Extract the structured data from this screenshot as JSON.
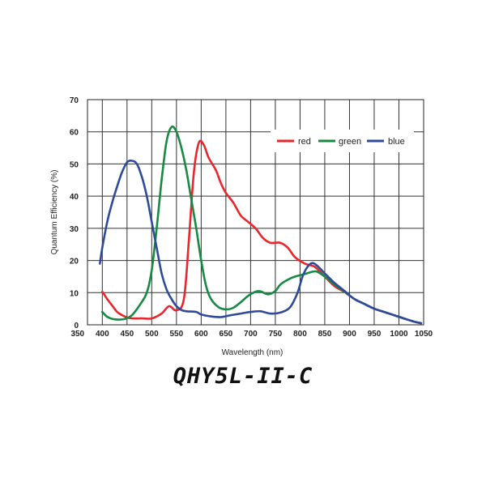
{
  "caption": "QHY5L-II-C",
  "chart_data": {
    "type": "line",
    "title": "",
    "xlabel": "Wavelength (nm)",
    "ylabel": "Quantum Efficiency (%)",
    "xlim": [
      350,
      1050
    ],
    "ylim": [
      0,
      70
    ],
    "x_ticks": [
      350,
      400,
      450,
      500,
      550,
      600,
      650,
      700,
      750,
      800,
      850,
      900,
      950,
      1000,
      1050
    ],
    "y_ticks": [
      0,
      10,
      20,
      30,
      40,
      50,
      60,
      70
    ],
    "grid": true,
    "legend_position": "top-right",
    "series": [
      {
        "name": "red",
        "color": "#e8262c",
        "points": [
          [
            400,
            10.3
          ],
          [
            410,
            8
          ],
          [
            420,
            6
          ],
          [
            430,
            4
          ],
          [
            440,
            3
          ],
          [
            450,
            2.3
          ],
          [
            460,
            2
          ],
          [
            480,
            2
          ],
          [
            500,
            2
          ],
          [
            520,
            3.5
          ],
          [
            535,
            5.8
          ],
          [
            550,
            4.5
          ],
          [
            565,
            8
          ],
          [
            575,
            26
          ],
          [
            585,
            47
          ],
          [
            595,
            56.5
          ],
          [
            605,
            56
          ],
          [
            615,
            52
          ],
          [
            630,
            48
          ],
          [
            640,
            44
          ],
          [
            650,
            41
          ],
          [
            665,
            38
          ],
          [
            680,
            34
          ],
          [
            695,
            32
          ],
          [
            710,
            30
          ],
          [
            725,
            27
          ],
          [
            740,
            25.5
          ],
          [
            760,
            25.5
          ],
          [
            775,
            24
          ],
          [
            790,
            21
          ],
          [
            810,
            19
          ],
          [
            830,
            18
          ],
          [
            850,
            15
          ],
          [
            870,
            12
          ],
          [
            890,
            10.2
          ],
          [
            910,
            8
          ],
          [
            930,
            6.5
          ],
          [
            950,
            5
          ],
          [
            970,
            4
          ],
          [
            990,
            3
          ],
          [
            1010,
            2
          ],
          [
            1030,
            1
          ],
          [
            1045,
            0.5
          ]
        ]
      },
      {
        "name": "green",
        "color": "#168a42",
        "points": [
          [
            400,
            4
          ],
          [
            410,
            2.5
          ],
          [
            425,
            1.7
          ],
          [
            445,
            1.8
          ],
          [
            460,
            3
          ],
          [
            475,
            6
          ],
          [
            490,
            10
          ],
          [
            500,
            17
          ],
          [
            510,
            30
          ],
          [
            520,
            45
          ],
          [
            530,
            57
          ],
          [
            540,
            61.5
          ],
          [
            550,
            60
          ],
          [
            560,
            55
          ],
          [
            570,
            48
          ],
          [
            580,
            39
          ],
          [
            590,
            30
          ],
          [
            600,
            20
          ],
          [
            610,
            12
          ],
          [
            620,
            8
          ],
          [
            635,
            5.5
          ],
          [
            650,
            4.8
          ],
          [
            665,
            5.3
          ],
          [
            680,
            7
          ],
          [
            695,
            9
          ],
          [
            710,
            10.3
          ],
          [
            720,
            10.4
          ],
          [
            735,
            9.5
          ],
          [
            750,
            10.5
          ],
          [
            760,
            12.5
          ],
          [
            775,
            14
          ],
          [
            790,
            15
          ],
          [
            810,
            15.8
          ],
          [
            825,
            16.5
          ],
          [
            835,
            16.5
          ],
          [
            850,
            15
          ],
          [
            870,
            12.5
          ],
          [
            890,
            10.3
          ],
          [
            910,
            8
          ],
          [
            930,
            6.5
          ],
          [
            950,
            5
          ],
          [
            970,
            4
          ],
          [
            990,
            3
          ],
          [
            1010,
            2
          ],
          [
            1030,
            1
          ],
          [
            1045,
            0.5
          ]
        ]
      },
      {
        "name": "blue",
        "color": "#2e4a9a",
        "points": [
          [
            395,
            19
          ],
          [
            400,
            24
          ],
          [
            410,
            32
          ],
          [
            420,
            38
          ],
          [
            430,
            43
          ],
          [
            440,
            47.5
          ],
          [
            450,
            50.5
          ],
          [
            460,
            51
          ],
          [
            470,
            50
          ],
          [
            480,
            46
          ],
          [
            490,
            40
          ],
          [
            500,
            32
          ],
          [
            510,
            24
          ],
          [
            520,
            16
          ],
          [
            530,
            11
          ],
          [
            540,
            8
          ],
          [
            550,
            5.8
          ],
          [
            560,
            4.6
          ],
          [
            570,
            4.2
          ],
          [
            590,
            4
          ],
          [
            600,
            3.2
          ],
          [
            620,
            2.6
          ],
          [
            640,
            2.4
          ],
          [
            660,
            3
          ],
          [
            680,
            3.5
          ],
          [
            700,
            4
          ],
          [
            720,
            4.2
          ],
          [
            740,
            3.5
          ],
          [
            760,
            3.8
          ],
          [
            780,
            5.5
          ],
          [
            795,
            10
          ],
          [
            805,
            15
          ],
          [
            815,
            18
          ],
          [
            825,
            19.2
          ],
          [
            835,
            18.3
          ],
          [
            850,
            16
          ],
          [
            870,
            13
          ],
          [
            890,
            10.5
          ],
          [
            910,
            8
          ],
          [
            930,
            6.5
          ],
          [
            950,
            5
          ],
          [
            970,
            4
          ],
          [
            990,
            3
          ],
          [
            1010,
            2
          ],
          [
            1030,
            1
          ],
          [
            1045,
            0.5
          ]
        ]
      }
    ]
  }
}
